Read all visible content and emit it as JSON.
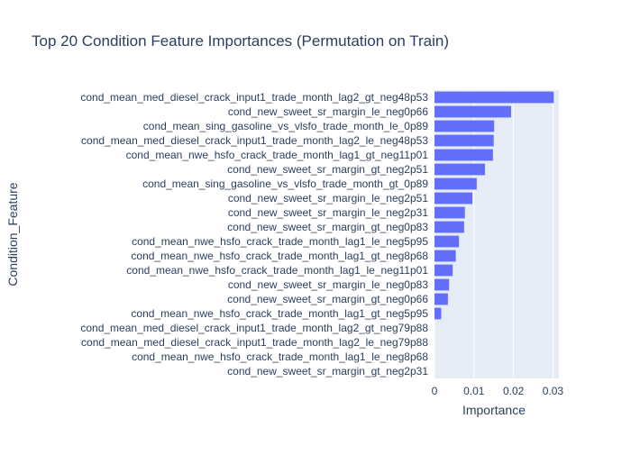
{
  "chart_data": {
    "type": "bar",
    "orientation": "horizontal",
    "title": "Top 20 Condition Feature Importances (Permutation on Train)",
    "xlabel": "Importance",
    "ylabel": "Condition_Feature",
    "xlim": [
      0,
      0.0315
    ],
    "xticks": [
      0,
      0.01,
      0.02,
      0.03
    ],
    "xtick_labels": [
      "0",
      "0.01",
      "0.02",
      "0.03"
    ],
    "grid": true,
    "bar_color": "#636efa",
    "background_color": "#e5ecf6",
    "categories": [
      "cond_mean_med_diesel_crack_input1_trade_month_lag2_gt_neg48p53",
      "cond_new_sweet_sr_margin_le_neg0p66",
      "cond_mean_sing_gasoline_vs_vlsfo_trade_month_le_0p89",
      "cond_mean_med_diesel_crack_input1_trade_month_lag2_le_neg48p53",
      "cond_mean_nwe_hsfo_crack_trade_month_lag1_gt_neg11p01",
      "cond_new_sweet_sr_margin_gt_neg2p51",
      "cond_mean_sing_gasoline_vs_vlsfo_trade_month_gt_0p89",
      "cond_new_sweet_sr_margin_le_neg2p51",
      "cond_new_sweet_sr_margin_le_neg2p31",
      "cond_new_sweet_sr_margin_gt_neg0p83",
      "cond_mean_nwe_hsfo_crack_trade_month_lag1_le_neg5p95",
      "cond_mean_nwe_hsfo_crack_trade_month_lag1_gt_neg8p68",
      "cond_mean_nwe_hsfo_crack_trade_month_lag1_le_neg11p01",
      "cond_new_sweet_sr_margin_le_neg0p83",
      "cond_new_sweet_sr_margin_gt_neg0p66",
      "cond_mean_nwe_hsfo_crack_trade_month_lag1_gt_neg5p95",
      "cond_mean_med_diesel_crack_input1_trade_month_lag2_gt_neg79p88",
      "cond_mean_med_diesel_crack_input1_trade_month_lag2_le_neg79p88",
      "cond_mean_nwe_hsfo_crack_trade_month_lag1_le_neg8p68",
      "cond_new_sweet_sr_margin_gt_neg2p31"
    ],
    "values": [
      0.0302,
      0.0194,
      0.0151,
      0.015,
      0.0148,
      0.0128,
      0.0107,
      0.0096,
      0.0077,
      0.0075,
      0.0062,
      0.0054,
      0.0046,
      0.0037,
      0.0034,
      0.0017,
      0,
      0,
      0,
      0
    ]
  }
}
